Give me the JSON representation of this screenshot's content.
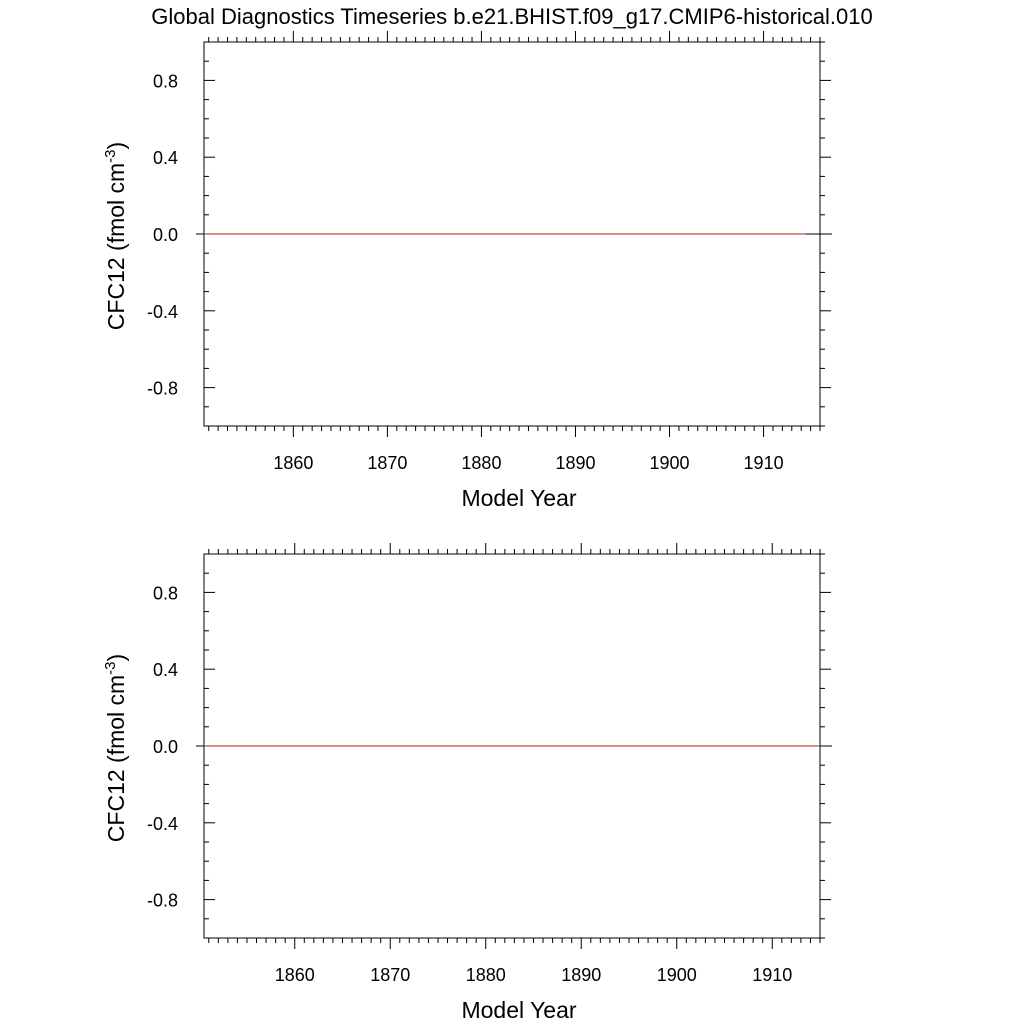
{
  "figure": {
    "title": "Global Diagnostics Timeseries b.e21.BHIST.f09_g17.CMIP6-historical.010"
  },
  "chart_data": [
    {
      "type": "line",
      "xlabel": "Model Year",
      "ylabel_main": "CFC12 (fmol cm",
      "ylabel_sup": "-3",
      "ylabel_close": ")",
      "xlim": [
        1850.5,
        1916
      ],
      "ylim": [
        -1.0,
        1.0
      ],
      "x_ticks": [
        1860,
        1870,
        1880,
        1890,
        1900,
        1910
      ],
      "x_tick_labels": [
        "1860",
        "1870",
        "1880",
        "1890",
        "1900",
        "1910"
      ],
      "y_ticks": [
        0.8,
        0.4,
        0.0,
        -0.4,
        -0.8
      ],
      "y_tick_labels": [
        "0.8",
        "0.4",
        "0.0",
        "-0.4",
        "-0.8"
      ],
      "grid": false,
      "series": [
        {
          "x": [
            1850.5,
            1914.5
          ],
          "y": [
            0.0,
            0.0
          ],
          "color": "#b5563f"
        }
      ],
      "zero_line_color": "#000000"
    },
    {
      "type": "line",
      "xlabel": "Model Year",
      "ylabel_main": "CFC12 (fmol cm",
      "ylabel_sup": "-3",
      "ylabel_close": ")",
      "xlim": [
        1850.5,
        1915
      ],
      "ylim": [
        -1.0,
        1.0
      ],
      "x_ticks": [
        1860,
        1870,
        1880,
        1890,
        1900,
        1910
      ],
      "x_tick_labels": [
        "1860",
        "1870",
        "1880",
        "1890",
        "1900",
        "1910"
      ],
      "y_ticks": [
        0.8,
        0.4,
        0.0,
        -0.4,
        -0.8
      ],
      "y_tick_labels": [
        "0.8",
        "0.4",
        "0.0",
        "-0.4",
        "-0.8"
      ],
      "grid": false,
      "series": [
        {
          "x": [
            1850.5,
            1915
          ],
          "y": [
            0.0,
            0.0
          ],
          "color": "#b5563f"
        }
      ],
      "zero_line_color": "#000000"
    }
  ]
}
